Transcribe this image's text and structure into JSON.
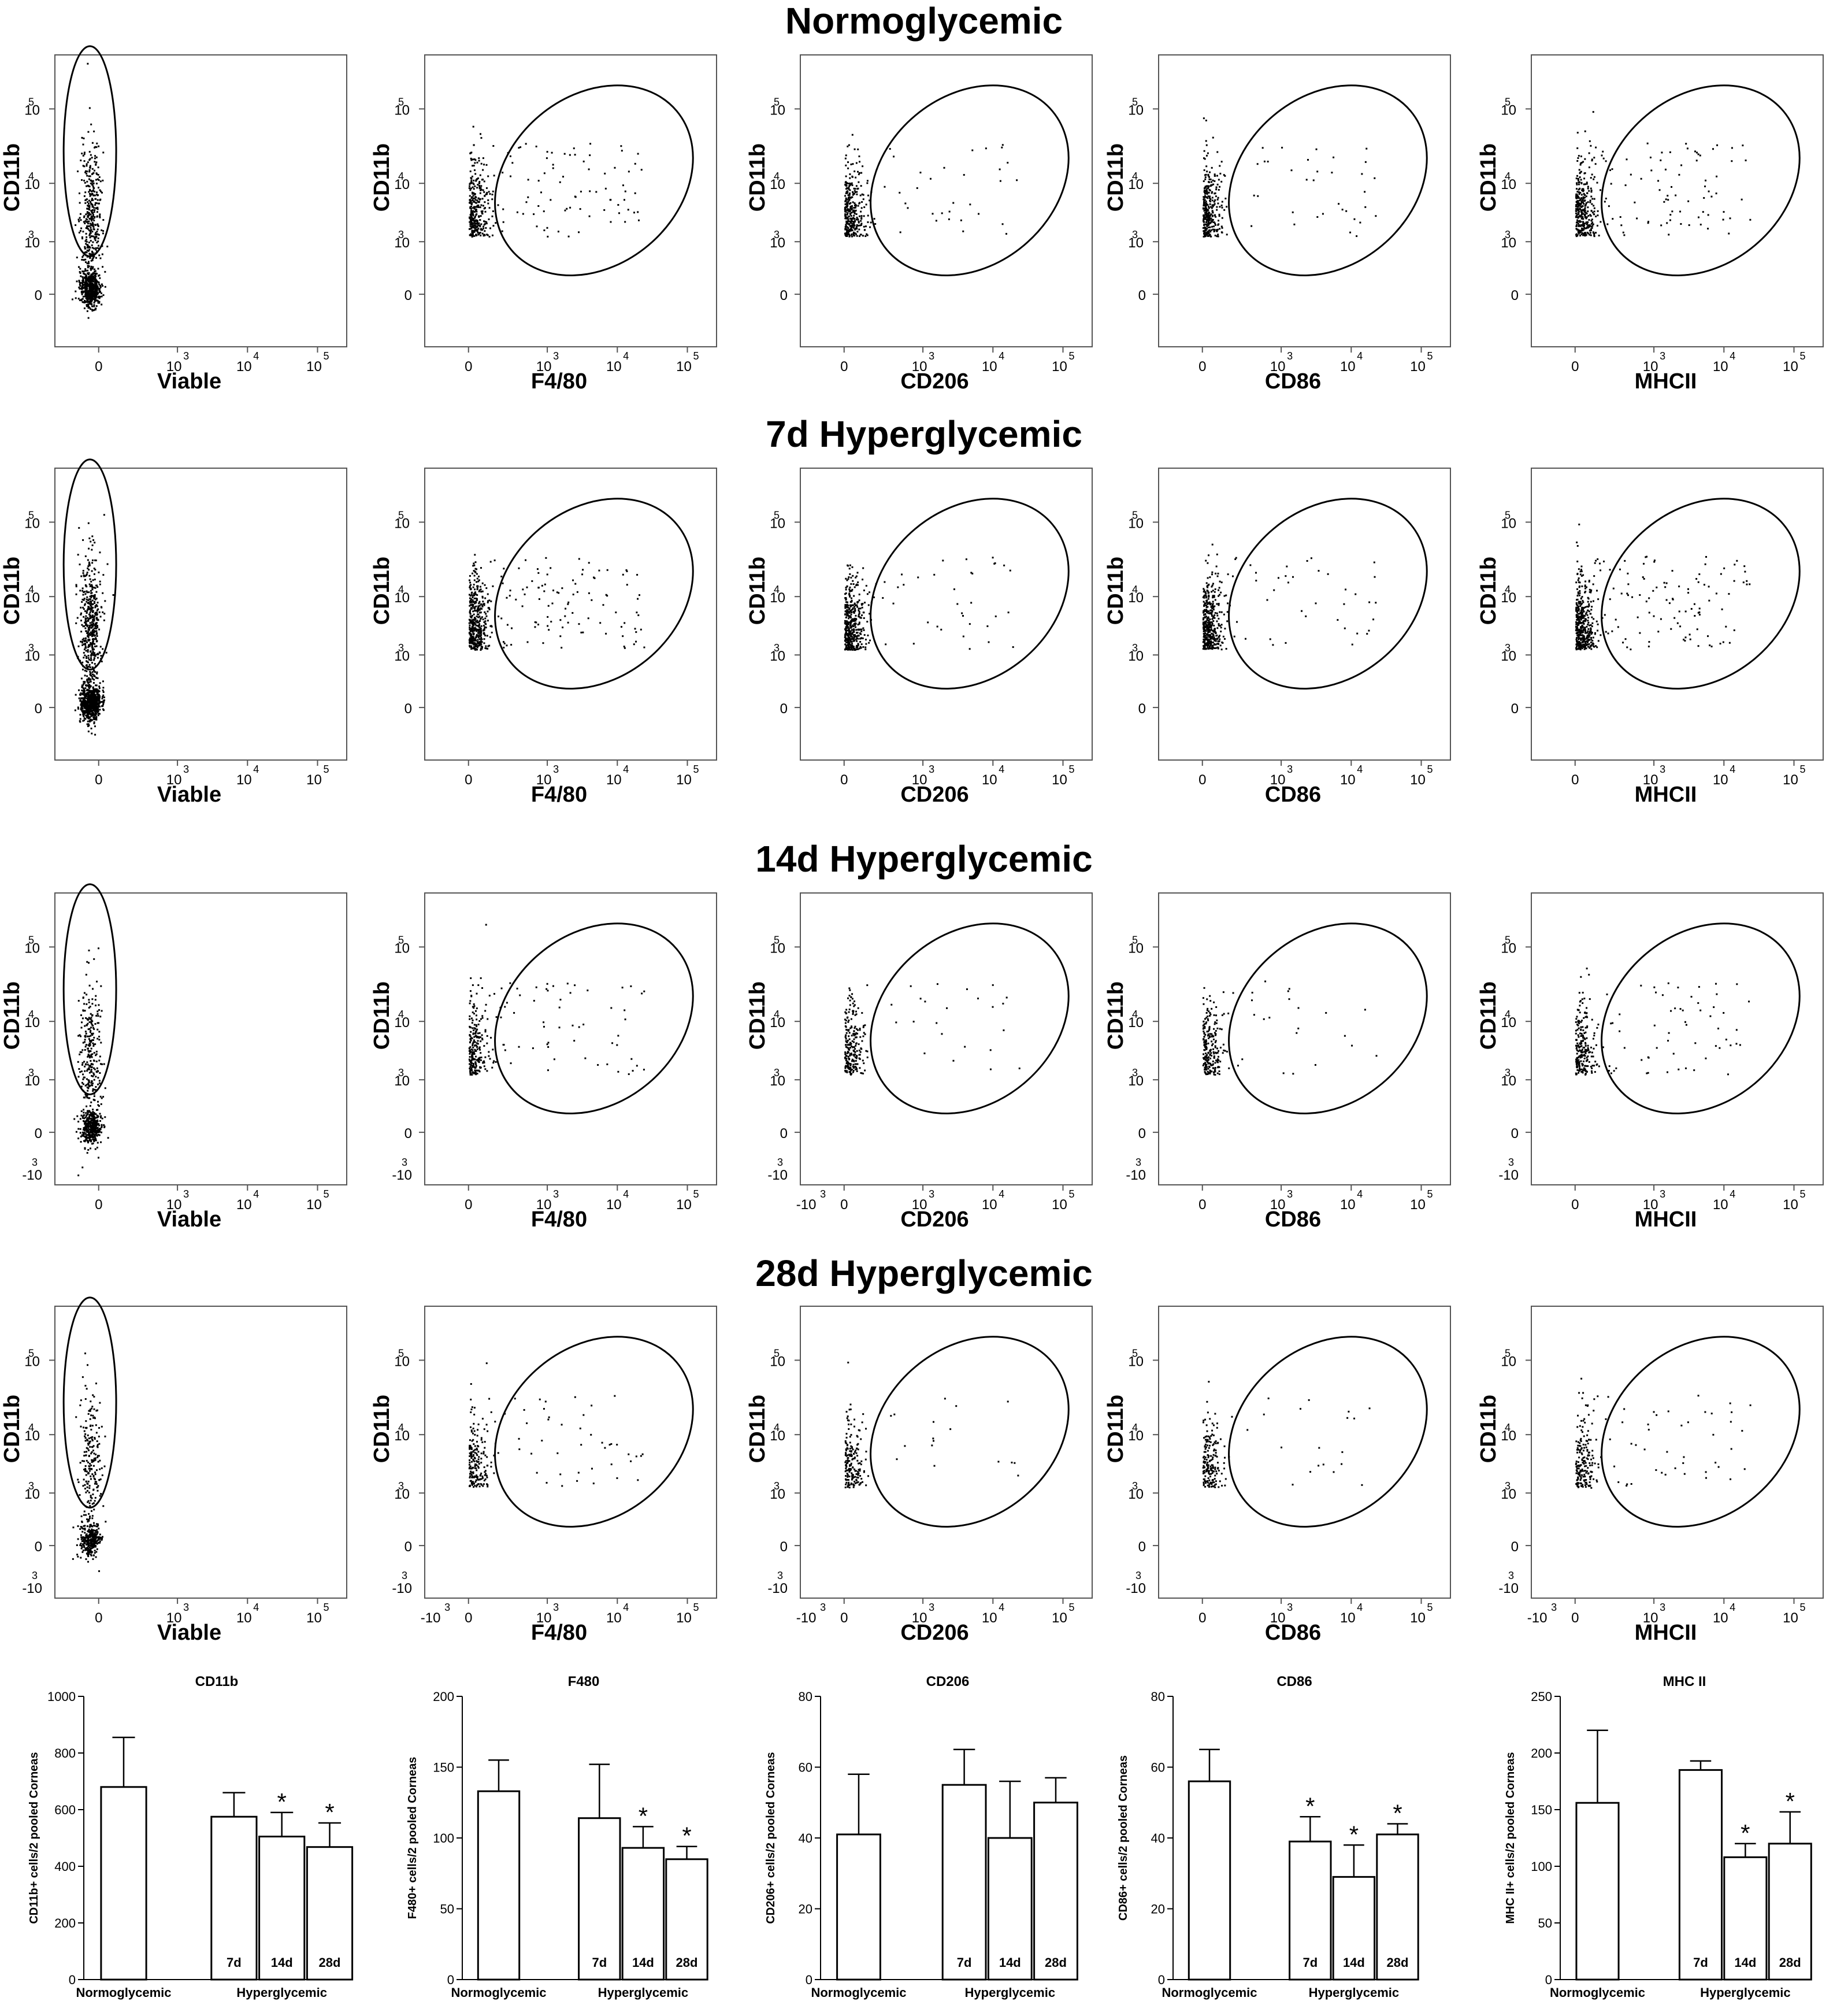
{
  "rows": [
    {
      "title": "Normoglycemic"
    },
    {
      "title": "7d Hyperglycemic"
    },
    {
      "title": "14d Hyperglycemic"
    },
    {
      "title": "28d Hyperglycemic"
    }
  ],
  "scatter_panels": [
    {
      "xlabel": "Viable",
      "ylabel": "CD11b"
    },
    {
      "xlabel": "F4/80",
      "ylabel": "CD11b"
    },
    {
      "xlabel": "CD206",
      "ylabel": "CD11b"
    },
    {
      "xlabel": "CD86",
      "ylabel": "CD11b"
    },
    {
      "xlabel": "MHCII",
      "ylabel": "CD11b"
    }
  ],
  "tick_labels": {
    "zero": "0",
    "neg3": "-10",
    "neg_exp": "3",
    "pos": [
      {
        "base": "10",
        "exp": "3"
      },
      {
        "base": "10",
        "exp": "4"
      },
      {
        "base": "10",
        "exp": "5"
      }
    ]
  },
  "bar_groups": {
    "normo": "Normoglycemic",
    "hyper": "Hyperglycemic",
    "bar_labels": [
      "7d",
      "14d",
      "28d"
    ],
    "sig_mark": "*"
  },
  "chart_data": [
    {
      "type": "bar",
      "title": "CD11b",
      "ylabel": "CD11b+ cells/2 pooled Corneas",
      "ylim": [
        0,
        1000
      ],
      "yticks": [
        0,
        200,
        400,
        600,
        800,
        1000
      ],
      "categories": [
        "Normoglycemic",
        "7d",
        "14d",
        "28d"
      ],
      "values": [
        680,
        575,
        505,
        468
      ],
      "errors": [
        175,
        85,
        85,
        85
      ],
      "significant": [
        false,
        false,
        true,
        true
      ]
    },
    {
      "type": "bar",
      "title": "F480",
      "ylabel": "F480+ cells/2 pooled Corneas",
      "ylim": [
        0,
        200
      ],
      "yticks": [
        0,
        50,
        100,
        150,
        200
      ],
      "categories": [
        "Normoglycemic",
        "7d",
        "14d",
        "28d"
      ],
      "values": [
        133,
        114,
        93,
        85
      ],
      "errors": [
        22,
        38,
        15,
        9
      ],
      "significant": [
        false,
        false,
        true,
        true
      ]
    },
    {
      "type": "bar",
      "title": "CD206",
      "ylabel": "CD206+ cells/2 pooled Corneas",
      "ylim": [
        0,
        80
      ],
      "yticks": [
        0,
        20,
        40,
        60,
        80
      ],
      "categories": [
        "Normoglycemic",
        "7d",
        "14d",
        "28d"
      ],
      "values": [
        41,
        55,
        40,
        50
      ],
      "errors": [
        17,
        10,
        16,
        7
      ],
      "significant": [
        false,
        false,
        false,
        false
      ]
    },
    {
      "type": "bar",
      "title": "CD86",
      "ylabel": "CD86+ cells/2 pooled Corneas",
      "ylim": [
        0,
        80
      ],
      "yticks": [
        0,
        20,
        40,
        60,
        80
      ],
      "categories": [
        "Normoglycemic",
        "7d",
        "14d",
        "28d"
      ],
      "values": [
        56,
        39,
        29,
        41
      ],
      "errors": [
        9,
        7,
        9,
        3
      ],
      "significant": [
        false,
        true,
        true,
        true
      ]
    },
    {
      "type": "bar",
      "title": "MHC II",
      "ylabel": "MHC II+ cells/2 pooled Corneas",
      "ylim": [
        0,
        250
      ],
      "yticks": [
        0,
        50,
        100,
        150,
        200,
        250
      ],
      "categories": [
        "Normoglycemic",
        "7d",
        "14d",
        "28d"
      ],
      "values": [
        156,
        185,
        108,
        120
      ],
      "errors": [
        64,
        8,
        12,
        28
      ],
      "significant": [
        false,
        false,
        true,
        true
      ]
    }
  ]
}
